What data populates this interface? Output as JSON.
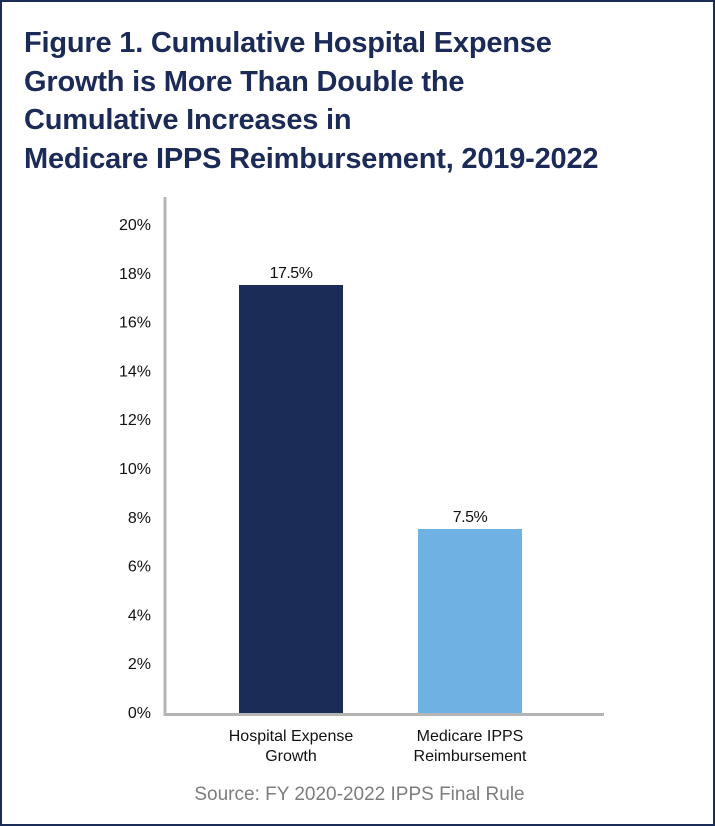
{
  "chart_data": {
    "type": "bar",
    "title_lines": [
      "Figure 1. Cumulative Hospital Expense",
      "Growth is More Than Double the",
      "Cumulative Increases in",
      "Medicare IPPS Reimbursement, 2019-2022"
    ],
    "categories": [
      [
        "Hospital Expense",
        "Growth"
      ],
      [
        "Medicare IPPS",
        "Reimbursement"
      ]
    ],
    "values": [
      17.5,
      7.5
    ],
    "data_labels": [
      "17.5%",
      "7.5%"
    ],
    "colors": [
      "#1b2d57",
      "#6fb1e2"
    ],
    "ylim": [
      0,
      20
    ],
    "yticks": [
      0,
      2,
      4,
      6,
      8,
      10,
      12,
      14,
      16,
      18,
      20
    ],
    "ytick_labels": [
      "0%",
      "2%",
      "4%",
      "6%",
      "8%",
      "10%",
      "12%",
      "14%",
      "16%",
      "18%",
      "20%"
    ],
    "grid": false,
    "legend": "none",
    "source": "Source: FY 2020-2022 IPPS Final Rule"
  }
}
